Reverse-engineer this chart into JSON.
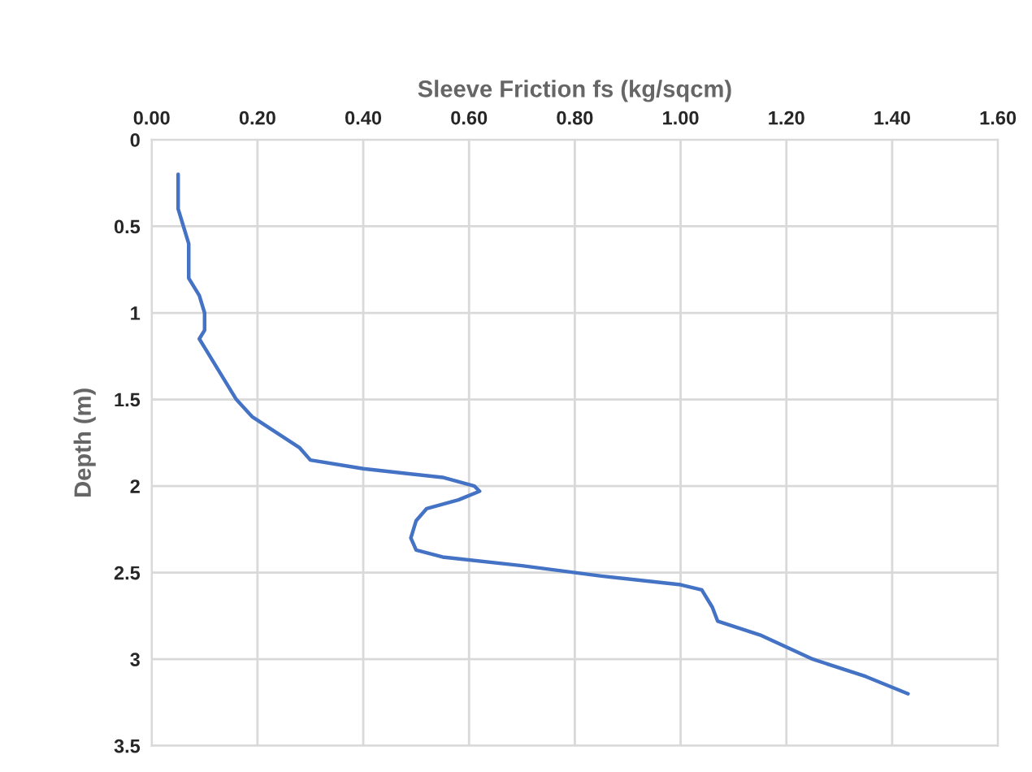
{
  "chart_data": {
    "type": "line",
    "xlabel": "Sleeve Friction fs (kg/sqcm)",
    "ylabel": "Depth (m)",
    "x": [
      0.05,
      0.05,
      0.06,
      0.07,
      0.07,
      0.09,
      0.1,
      0.1,
      0.09,
      0.1,
      0.13,
      0.16,
      0.19,
      0.24,
      0.28,
      0.3,
      0.4,
      0.55,
      0.61,
      0.62,
      0.58,
      0.52,
      0.5,
      0.49,
      0.5,
      0.55,
      0.7,
      0.85,
      1.0,
      1.04,
      1.06,
      1.07,
      1.15,
      1.25,
      1.35,
      1.43
    ],
    "series": [
      {
        "color": "#4472c4",
        "values": [
          0.2,
          0.4,
          0.5,
          0.6,
          0.8,
          0.9,
          1.0,
          1.1,
          1.15,
          1.2,
          1.35,
          1.5,
          1.6,
          1.7,
          1.78,
          1.85,
          1.9,
          1.95,
          2.0,
          2.03,
          2.08,
          2.13,
          2.2,
          2.3,
          2.37,
          2.41,
          2.46,
          2.52,
          2.57,
          2.6,
          2.7,
          2.78,
          2.86,
          3.0,
          3.1,
          3.2
        ]
      }
    ],
    "xlim": [
      0,
      1.6
    ],
    "xticks": [
      {
        "value": 0,
        "label": "0.00"
      },
      {
        "value": 0.2,
        "label": "0.20"
      },
      {
        "value": 0.4,
        "label": "0.40"
      },
      {
        "value": 0.6,
        "label": "0.60"
      },
      {
        "value": 0.8,
        "label": "0.80"
      },
      {
        "value": 1.0,
        "label": "1.00"
      },
      {
        "value": 1.2,
        "label": "1.20"
      },
      {
        "value": 1.4,
        "label": "1.40"
      },
      {
        "value": 1.6,
        "label": "1.60"
      }
    ],
    "ylim": [
      3.5,
      0
    ],
    "yticks": [
      0,
      0.5,
      1,
      1.5,
      2,
      2.5,
      3,
      3.5
    ],
    "grid": true,
    "legend": false,
    "marker": "none",
    "line_style": "solid"
  }
}
